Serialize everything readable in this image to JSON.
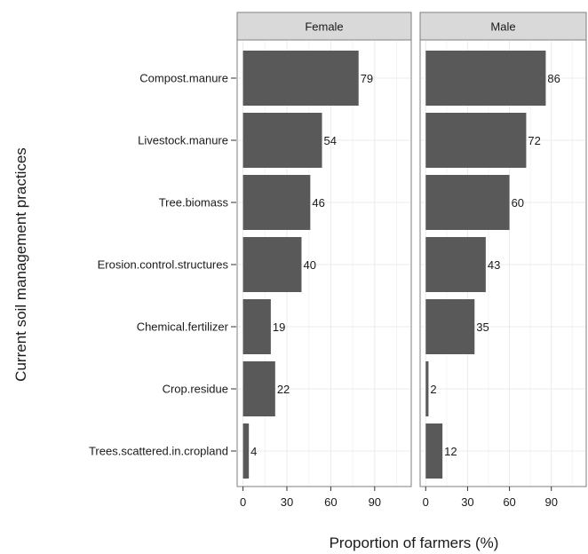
{
  "chart_data": {
    "type": "bar",
    "orientation": "horizontal",
    "facets": [
      "Female",
      "Male"
    ],
    "categories": [
      "Compost.manure",
      "Livestock.manure",
      "Tree.biomass",
      "Erosion.control.structures",
      "Chemical.fertilizer",
      "Crop.residue",
      "Trees.scattered.in.cropland"
    ],
    "series": [
      {
        "facet": "Female",
        "values": [
          79,
          54,
          46,
          40,
          19,
          22,
          4
        ]
      },
      {
        "facet": "Male",
        "values": [
          86,
          72,
          60,
          43,
          35,
          2,
          12
        ]
      }
    ],
    "xlabel": "Proportion of farmers (%)",
    "ylabel": "Current soil management practices",
    "xlim": [
      -4,
      115
    ],
    "xticks": [
      0,
      30,
      60,
      90
    ],
    "grid": true,
    "colors": {
      "bar": "#595959",
      "strip": "#d9d9d9",
      "grid": "#ebebeb"
    }
  }
}
